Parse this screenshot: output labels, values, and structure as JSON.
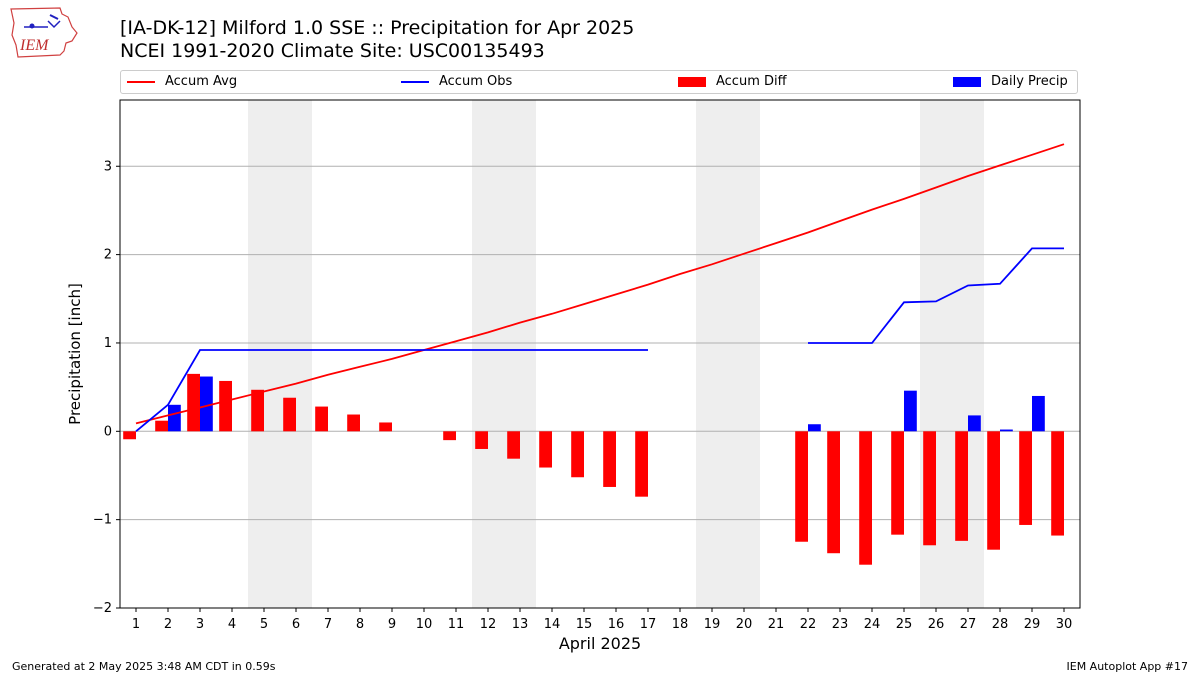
{
  "header": {
    "title_line1": "[IA-DK-12] Milford 1.0 SSE :: Precipitation for Apr 2025",
    "title_line2": "NCEI 1991-2020 Climate Site: USC00135493",
    "logo_text": "IEM"
  },
  "footer": {
    "generated": "Generated at 2 May 2025 3:48 AM CDT in 0.59s",
    "app": "IEM Autoplot App #17"
  },
  "colors": {
    "avg": "#ff0000",
    "obs": "#0000ff",
    "diff": "#ff0000",
    "daily": "#0000ff",
    "weekend_shade": "#eeeeee",
    "grid": "#b0b0b0"
  },
  "chart_data": {
    "type": "bar",
    "xlabel": "April 2025",
    "ylabel": "Precipitation [inch]",
    "xlim": [
      0.5,
      30.5
    ],
    "ylim": [
      -2,
      3.75
    ],
    "yticks": [
      -2,
      -1,
      0,
      1,
      2,
      3
    ],
    "ytick_labels": [
      "−2",
      "−1",
      "0",
      "1",
      "2",
      "3"
    ],
    "grid": "horizontal",
    "legend_position": "top",
    "days": [
      1,
      2,
      3,
      4,
      5,
      6,
      7,
      8,
      9,
      10,
      11,
      12,
      13,
      14,
      15,
      16,
      17,
      18,
      19,
      20,
      21,
      22,
      23,
      24,
      25,
      26,
      27,
      28,
      29,
      30
    ],
    "weekend_shading": [
      [
        5,
        6
      ],
      [
        12,
        13
      ],
      [
        19,
        20
      ],
      [
        26,
        27
      ]
    ],
    "series": [
      {
        "name": "Accum Avg",
        "kind": "line",
        "values": [
          0.09,
          0.18,
          0.27,
          0.36,
          0.45,
          0.54,
          0.64,
          0.73,
          0.82,
          0.92,
          1.02,
          1.12,
          1.23,
          1.33,
          1.44,
          1.55,
          1.66,
          1.78,
          1.89,
          2.01,
          2.13,
          2.25,
          2.38,
          2.51,
          2.63,
          2.76,
          2.89,
          3.01,
          3.13,
          3.25
        ]
      },
      {
        "name": "Accum Obs",
        "kind": "line",
        "values": [
          0.0,
          0.3,
          0.92,
          0.92,
          0.92,
          0.92,
          0.92,
          0.92,
          0.92,
          0.92,
          0.92,
          0.92,
          0.92,
          0.92,
          0.92,
          0.92,
          0.92,
          null,
          null,
          null,
          null,
          1.0,
          1.0,
          1.0,
          1.46,
          1.47,
          1.65,
          1.67,
          2.07,
          2.07
        ]
      },
      {
        "name": "Accum Diff",
        "kind": "bar",
        "values": [
          -0.09,
          0.12,
          0.65,
          0.57,
          0.47,
          0.38,
          0.28,
          0.19,
          0.1,
          0.0,
          -0.1,
          -0.2,
          -0.31,
          -0.41,
          -0.52,
          -0.63,
          -0.74,
          null,
          null,
          null,
          null,
          -1.25,
          -1.38,
          -1.51,
          -1.17,
          -1.29,
          -1.24,
          -1.34,
          -1.06,
          -1.18
        ]
      },
      {
        "name": "Daily Precip",
        "kind": "bar",
        "values": [
          0,
          0.3,
          0.62,
          0,
          0,
          0,
          0,
          0,
          0,
          0,
          0,
          0,
          0,
          0,
          0,
          0,
          0,
          null,
          null,
          null,
          null,
          0.08,
          0,
          0,
          0.46,
          0,
          0.18,
          0.02,
          0.4,
          0
        ]
      }
    ]
  }
}
